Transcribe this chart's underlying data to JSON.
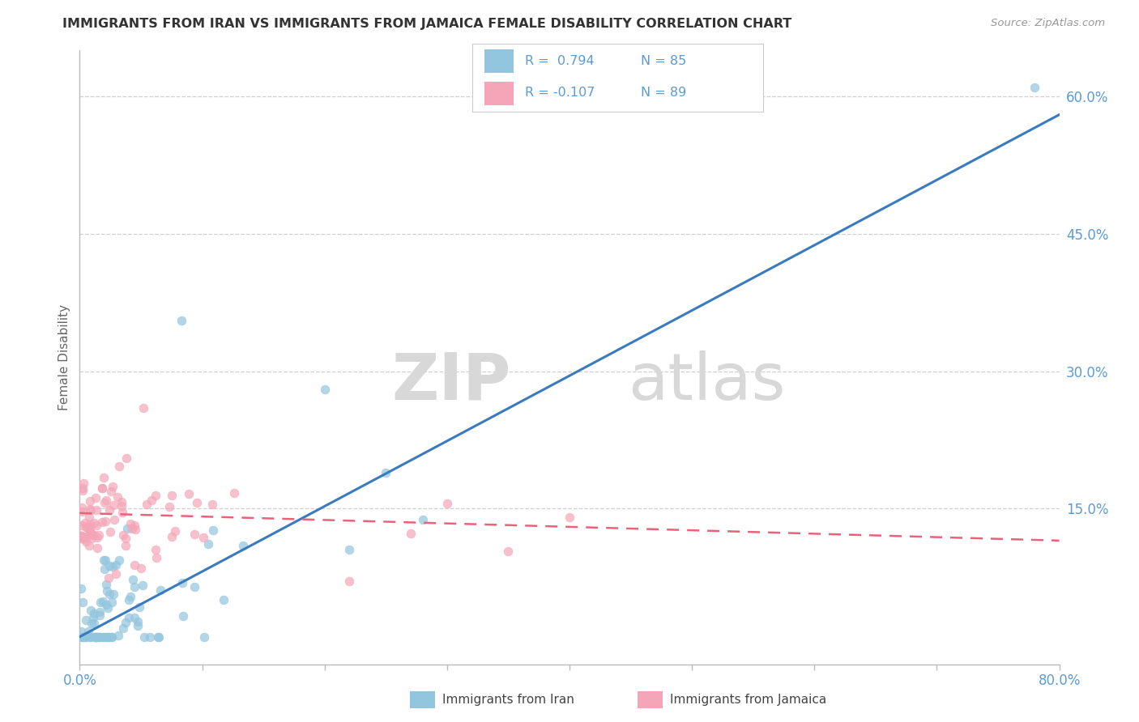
{
  "title": "IMMIGRANTS FROM IRAN VS IMMIGRANTS FROM JAMAICA FEMALE DISABILITY CORRELATION CHART",
  "source": "Source: ZipAtlas.com",
  "ylabel_label": "Female Disability",
  "right_yticks": [
    0.15,
    0.3,
    0.45,
    0.6
  ],
  "right_yticklabels": [
    "15.0%",
    "30.0%",
    "45.0%",
    "60.0%"
  ],
  "legend1_r": "0.794",
  "legend1_n": "85",
  "legend2_r": "-0.107",
  "legend2_n": "89",
  "series1_label": "Immigrants from Iran",
  "series2_label": "Immigrants from Jamaica",
  "color_iran": "#92c5de",
  "color_jamaica": "#f4a6b8",
  "trendline_color_iran": "#3a7bbf",
  "trendline_color_jamaica": "#e8637a",
  "watermark_zip": "ZIP",
  "watermark_atlas": "atlas",
  "xlim": [
    0.0,
    0.8
  ],
  "ylim": [
    -0.02,
    0.65
  ],
  "iran_trend_x0": 0.0,
  "iran_trend_y0": 0.01,
  "iran_trend_x1": 0.8,
  "iran_trend_y1": 0.58,
  "jamaica_trend_x0": 0.0,
  "jamaica_trend_y0": 0.145,
  "jamaica_trend_x1": 0.8,
  "jamaica_trend_y1": 0.115
}
